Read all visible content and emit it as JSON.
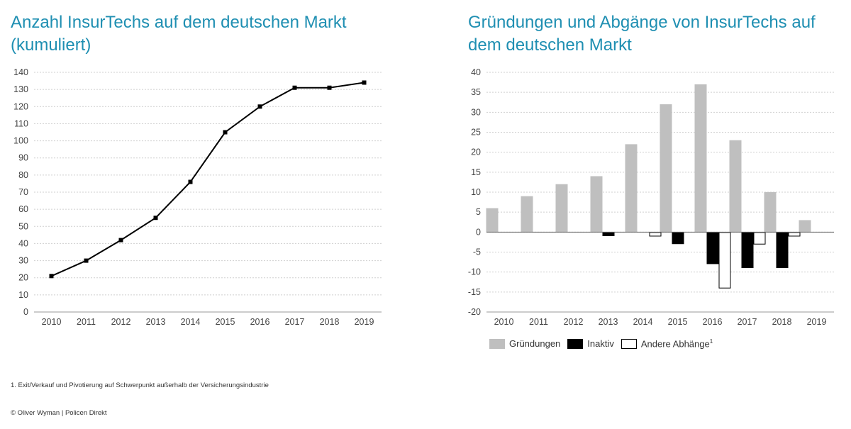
{
  "left_title": "Anzahl InsurTechs auf dem deutschen Markt (kumuliert)",
  "right_title": "Gründungen und Abgänge von InsurTechs auf dem deutschen Markt",
  "footnote": "1. Exit/Verkauf und Pivotierung auf Schwerpunkt außerhalb der Versicherungsindustrie",
  "copyright": "© Oliver Wyman | Policen Direkt",
  "legend": {
    "gruendungen": "Gründungen",
    "inaktiv": "Inaktiv",
    "andere": "Andere Abhänge",
    "andere_sup": "1"
  },
  "colors": {
    "title": "#1f8fb2",
    "gruendungen": "#bfbfbf",
    "inaktiv": "#000000",
    "andere": "#ffffff",
    "line": "#000000"
  },
  "chart_data": [
    {
      "type": "line",
      "title": "Anzahl InsurTechs auf dem deutschen Markt (kumuliert)",
      "x": [
        "2010",
        "2011",
        "2012",
        "2013",
        "2014",
        "2015",
        "2016",
        "2017",
        "2018",
        "2019"
      ],
      "series": [
        {
          "values": [
            21,
            30,
            42,
            55,
            76,
            105,
            120,
            131,
            131,
            134
          ]
        }
      ],
      "ylim": [
        0,
        140
      ],
      "yticks": [
        0,
        10,
        20,
        30,
        40,
        50,
        60,
        70,
        80,
        90,
        100,
        110,
        120,
        130,
        140
      ],
      "grid": true
    },
    {
      "type": "bar",
      "title": "Gründungen und Abgänge von InsurTechs auf dem deutschen Markt",
      "categories": [
        "2010",
        "2011",
        "2012",
        "2013",
        "2014",
        "2015",
        "2016",
        "2017",
        "2018",
        "2019"
      ],
      "series": [
        {
          "name": "Gründungen",
          "values": [
            6,
            9,
            12,
            14,
            22,
            32,
            37,
            23,
            10,
            3
          ]
        },
        {
          "name": "Inaktiv",
          "values": [
            0,
            0,
            0,
            -1,
            0,
            -3,
            -8,
            -9,
            -9,
            0
          ]
        },
        {
          "name": "Andere Abhänge",
          "values": [
            0,
            0,
            0,
            0,
            -1,
            0,
            -14,
            -3,
            -1,
            0
          ]
        }
      ],
      "ylim": [
        -20,
        40
      ],
      "yticks": [
        -20,
        -15,
        -10,
        -5,
        0,
        5,
        10,
        15,
        20,
        25,
        30,
        35,
        40
      ],
      "grid": true,
      "legend_position": "bottom"
    }
  ]
}
